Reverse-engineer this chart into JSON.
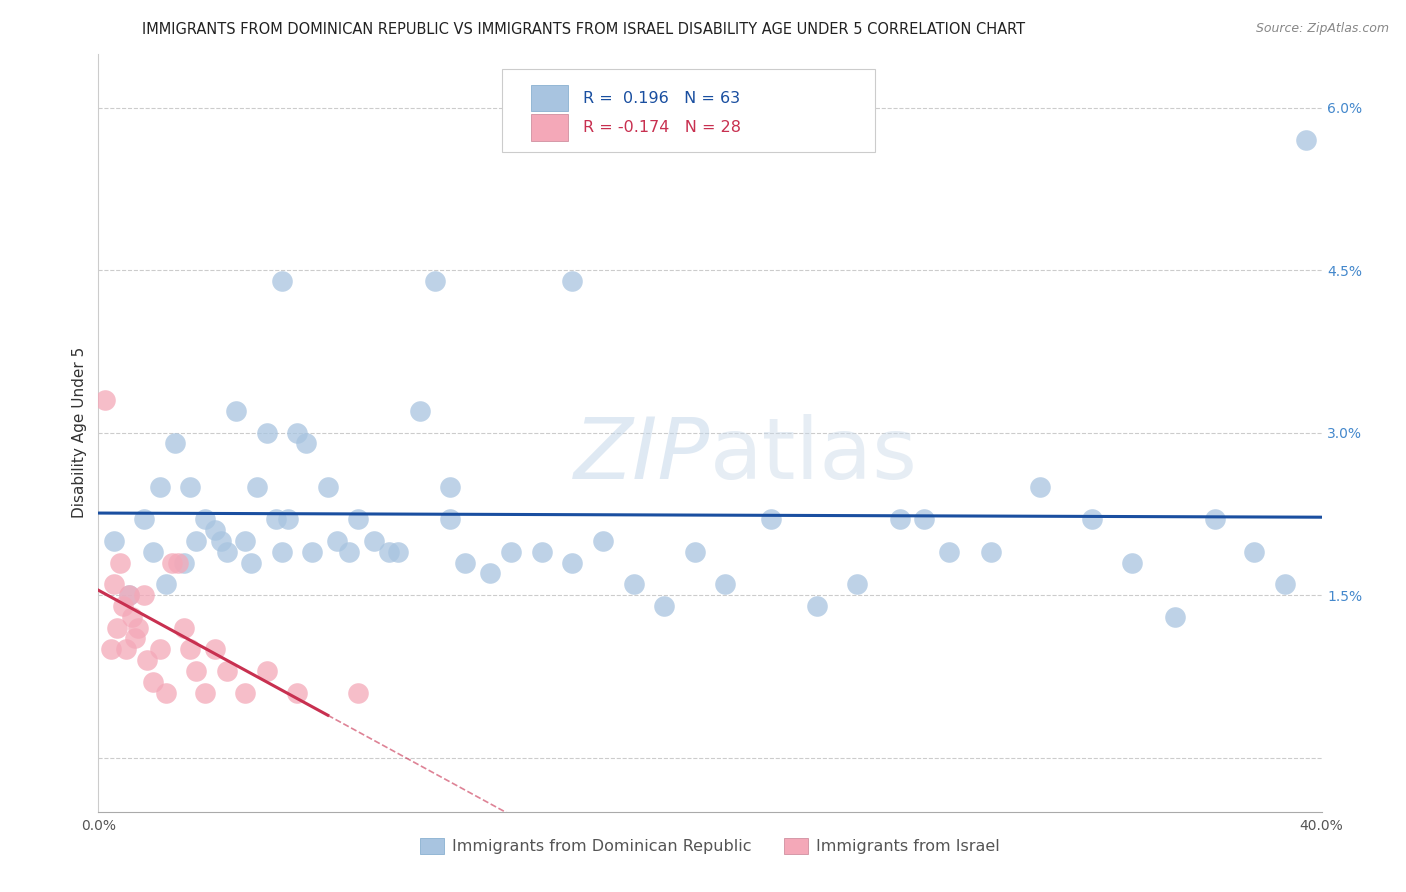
{
  "title": "IMMIGRANTS FROM DOMINICAN REPUBLIC VS IMMIGRANTS FROM ISRAEL DISABILITY AGE UNDER 5 CORRELATION CHART",
  "source": "Source: ZipAtlas.com",
  "ylabel": "Disability Age Under 5",
  "xlim": [
    0.0,
    0.4
  ],
  "ylim": [
    -0.005,
    0.065
  ],
  "ytick_vals": [
    0.0,
    0.015,
    0.03,
    0.045,
    0.06
  ],
  "ytick_labels": [
    "",
    "1.5%",
    "3.0%",
    "4.5%",
    "6.0%"
  ],
  "xtick_vals": [
    0.0,
    0.1,
    0.2,
    0.3,
    0.4
  ],
  "xtick_labels": [
    "0.0%",
    "",
    "",
    "",
    "40.0%"
  ],
  "blue_color": "#a8c4e0",
  "pink_color": "#f4a8b8",
  "blue_line_color": "#1a4fa0",
  "pink_line_color": "#c83050",
  "legend_r1": "R =  0.196",
  "legend_n1": "N = 63",
  "legend_r2": "R = -0.174",
  "legend_n2": "N = 28",
  "legend_label1": "Immigrants from Dominican Republic",
  "legend_label2": "Immigrants from Israel",
  "watermark_zip": "ZIP",
  "watermark_atlas": "atlas",
  "blue_scatter_x": [
    0.005,
    0.01,
    0.015,
    0.018,
    0.02,
    0.022,
    0.025,
    0.028,
    0.03,
    0.032,
    0.035,
    0.038,
    0.04,
    0.042,
    0.045,
    0.048,
    0.05,
    0.052,
    0.055,
    0.058,
    0.06,
    0.062,
    0.065,
    0.068,
    0.07,
    0.075,
    0.078,
    0.082,
    0.085,
    0.09,
    0.095,
    0.098,
    0.105,
    0.11,
    0.115,
    0.12,
    0.128,
    0.135,
    0.145,
    0.155,
    0.165,
    0.175,
    0.185,
    0.195,
    0.205,
    0.22,
    0.235,
    0.248,
    0.262,
    0.278,
    0.292,
    0.308,
    0.325,
    0.338,
    0.352,
    0.365,
    0.378,
    0.388,
    0.395,
    0.155,
    0.27,
    0.06,
    0.115
  ],
  "blue_scatter_y": [
    0.02,
    0.015,
    0.022,
    0.019,
    0.025,
    0.016,
    0.029,
    0.018,
    0.025,
    0.02,
    0.022,
    0.021,
    0.02,
    0.019,
    0.032,
    0.02,
    0.018,
    0.025,
    0.03,
    0.022,
    0.019,
    0.022,
    0.03,
    0.029,
    0.019,
    0.025,
    0.02,
    0.019,
    0.022,
    0.02,
    0.019,
    0.019,
    0.032,
    0.044,
    0.022,
    0.018,
    0.017,
    0.019,
    0.019,
    0.018,
    0.02,
    0.016,
    0.014,
    0.019,
    0.016,
    0.022,
    0.014,
    0.016,
    0.022,
    0.019,
    0.019,
    0.025,
    0.022,
    0.018,
    0.013,
    0.022,
    0.019,
    0.016,
    0.057,
    0.044,
    0.022,
    0.044,
    0.025
  ],
  "pink_scatter_x": [
    0.002,
    0.004,
    0.005,
    0.006,
    0.007,
    0.008,
    0.009,
    0.01,
    0.011,
    0.012,
    0.013,
    0.015,
    0.016,
    0.018,
    0.02,
    0.022,
    0.024,
    0.026,
    0.028,
    0.03,
    0.032,
    0.035,
    0.038,
    0.042,
    0.048,
    0.055,
    0.065,
    0.085
  ],
  "pink_scatter_y": [
    0.033,
    0.01,
    0.016,
    0.012,
    0.018,
    0.014,
    0.01,
    0.015,
    0.013,
    0.011,
    0.012,
    0.015,
    0.009,
    0.007,
    0.01,
    0.006,
    0.018,
    0.018,
    0.012,
    0.01,
    0.008,
    0.006,
    0.01,
    0.008,
    0.006,
    0.008,
    0.006,
    0.006
  ],
  "title_fontsize": 10.5,
  "axis_label_fontsize": 11,
  "tick_fontsize": 10,
  "legend_fontsize": 11.5
}
